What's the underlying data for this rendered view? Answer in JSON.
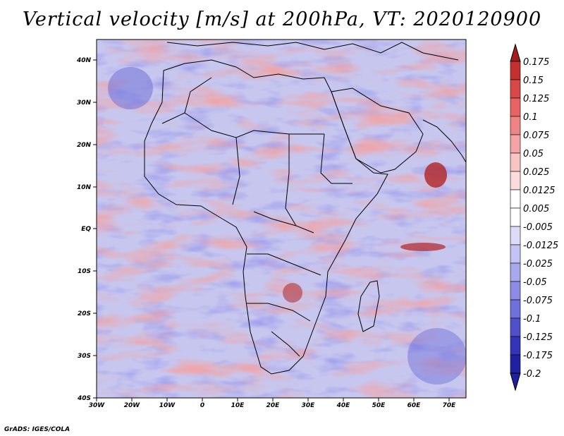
{
  "title": "Vertical velocity [m/s] at 200hPa, VT: 2020120900",
  "credit": "GrADS: IGES/COLA",
  "map": {
    "lon_ticks": [
      "30W",
      "20W",
      "10W",
      "0",
      "10E",
      "20E",
      "30E",
      "40E",
      "50E",
      "60E",
      "70E"
    ],
    "lat_ticks": [
      "40N",
      "30N",
      "20N",
      "10N",
      "EQ",
      "10S",
      "20S",
      "30S",
      "40S"
    ],
    "lon_range": [
      -30,
      75
    ],
    "lat_range": [
      -40,
      45
    ]
  },
  "colorbar": {
    "levels": [
      "0.175",
      "0.15",
      "0.125",
      "0.1",
      "0.075",
      "0.05",
      "0.025",
      "0.0125",
      "0.005",
      "-0.005",
      "-0.0125",
      "-0.025",
      "-0.05",
      "-0.075",
      "-0.1",
      "-0.125",
      "-0.175",
      "-0.2"
    ],
    "colors": [
      "#a51c1c",
      "#c43030",
      "#d84848",
      "#e86464",
      "#ef8484",
      "#f4a4a4",
      "#f8c4c4",
      "#fbdcdc",
      "#ffffff",
      "#ffffff",
      "#dcdcf8",
      "#c4c4f4",
      "#a8a8ee",
      "#8c8ce6",
      "#7070dc",
      "#5050cc",
      "#3434b8",
      "#2020a0"
    ],
    "top_color": "#a51c1c",
    "bottom_color": "#2020a0"
  }
}
